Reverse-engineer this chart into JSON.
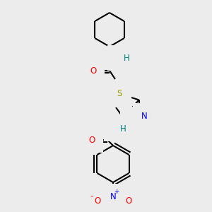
{
  "background_color": "#ececec",
  "bond_color": "black",
  "bond_width": 1.5,
  "atom_colors": {
    "C": "black",
    "H": "#008080",
    "N": "blue",
    "O": "red",
    "S": "#999900"
  },
  "font_size": 8.5,
  "figsize": [
    3.0,
    3.0
  ],
  "dpi": 100
}
